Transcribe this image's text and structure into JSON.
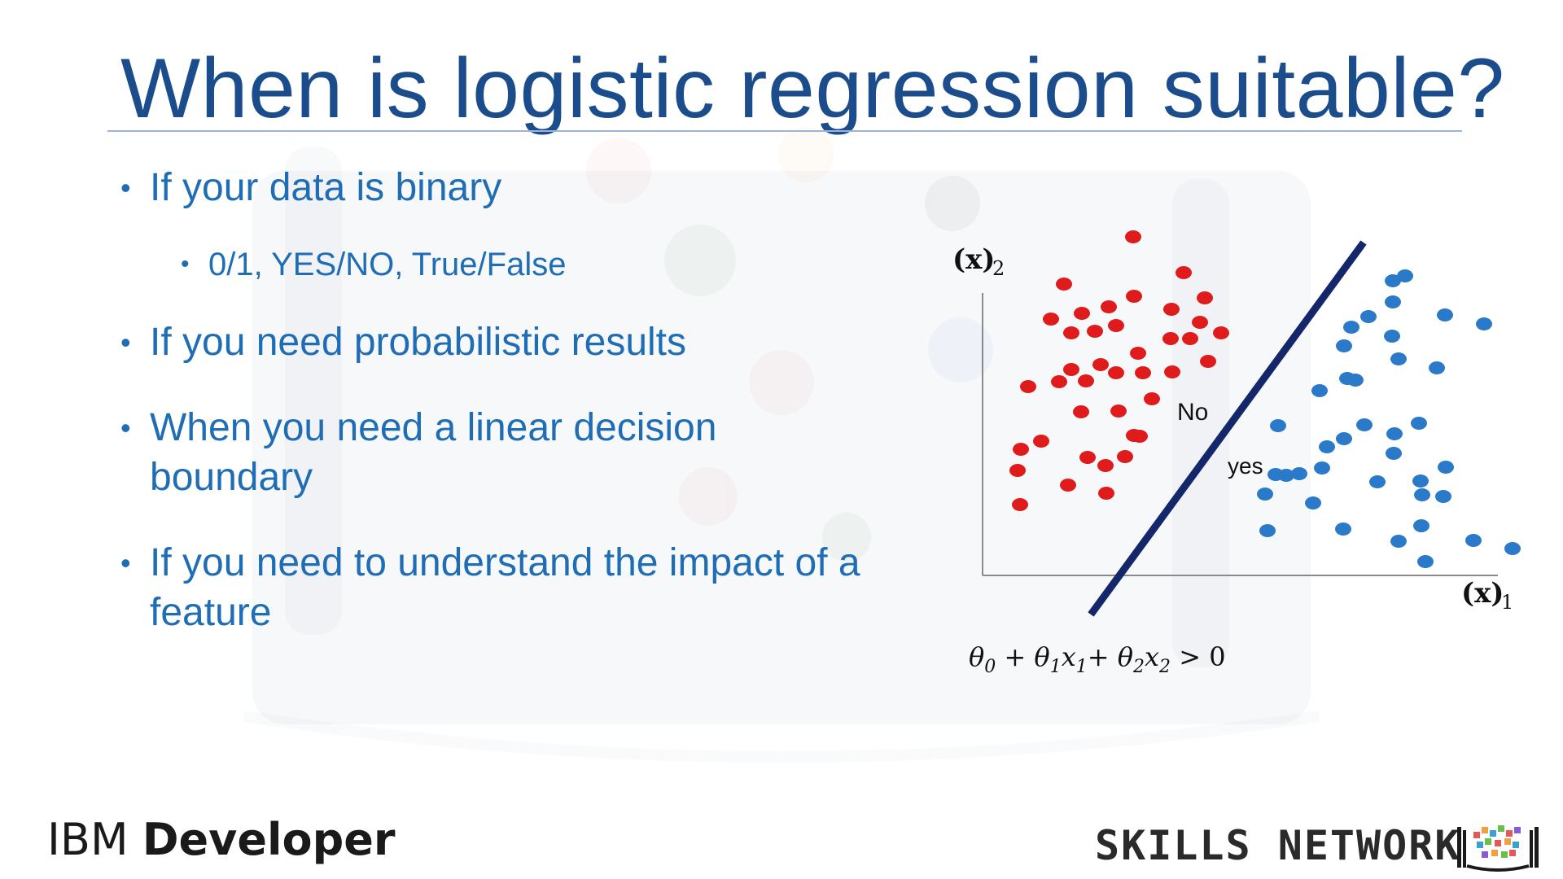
{
  "slide": {
    "title": "When is logistic regression suitable?",
    "bullets": [
      "If your data is binary",
      "If you need probabilistic results",
      "When you need a linear decision boundary",
      "If you need to understand the impact of a feature"
    ],
    "sub_bullets": [
      "0/1, YES/NO,  True/False"
    ]
  },
  "figure": {
    "y_axis_label": "(x)",
    "y_axis_sub": "2",
    "x_axis_label": "(x)",
    "x_axis_sub": "1",
    "label_no": "No",
    "label_yes": "yes",
    "equation_parts": {
      "t0": "θ",
      "s0": "0",
      "plus1": " + ",
      "t1": "θ",
      "s1": "1",
      "x1": "x",
      "sx1": "1",
      "plus2": "+ ",
      "t2": "θ",
      "s2": "2",
      "x2": "x",
      "sx2": "2",
      "gt": " > 0"
    },
    "colors": {
      "class_no": "#e01b1b",
      "class_yes": "#2a7ac9",
      "boundary": "#14276b",
      "axis": "#8a8a8a"
    }
  },
  "footer": {
    "brand_prefix": "IBM ",
    "brand_strong": "Developer",
    "network": "SKILLS NETWORK",
    "logo_icon": "skills-network-books-icon"
  }
}
